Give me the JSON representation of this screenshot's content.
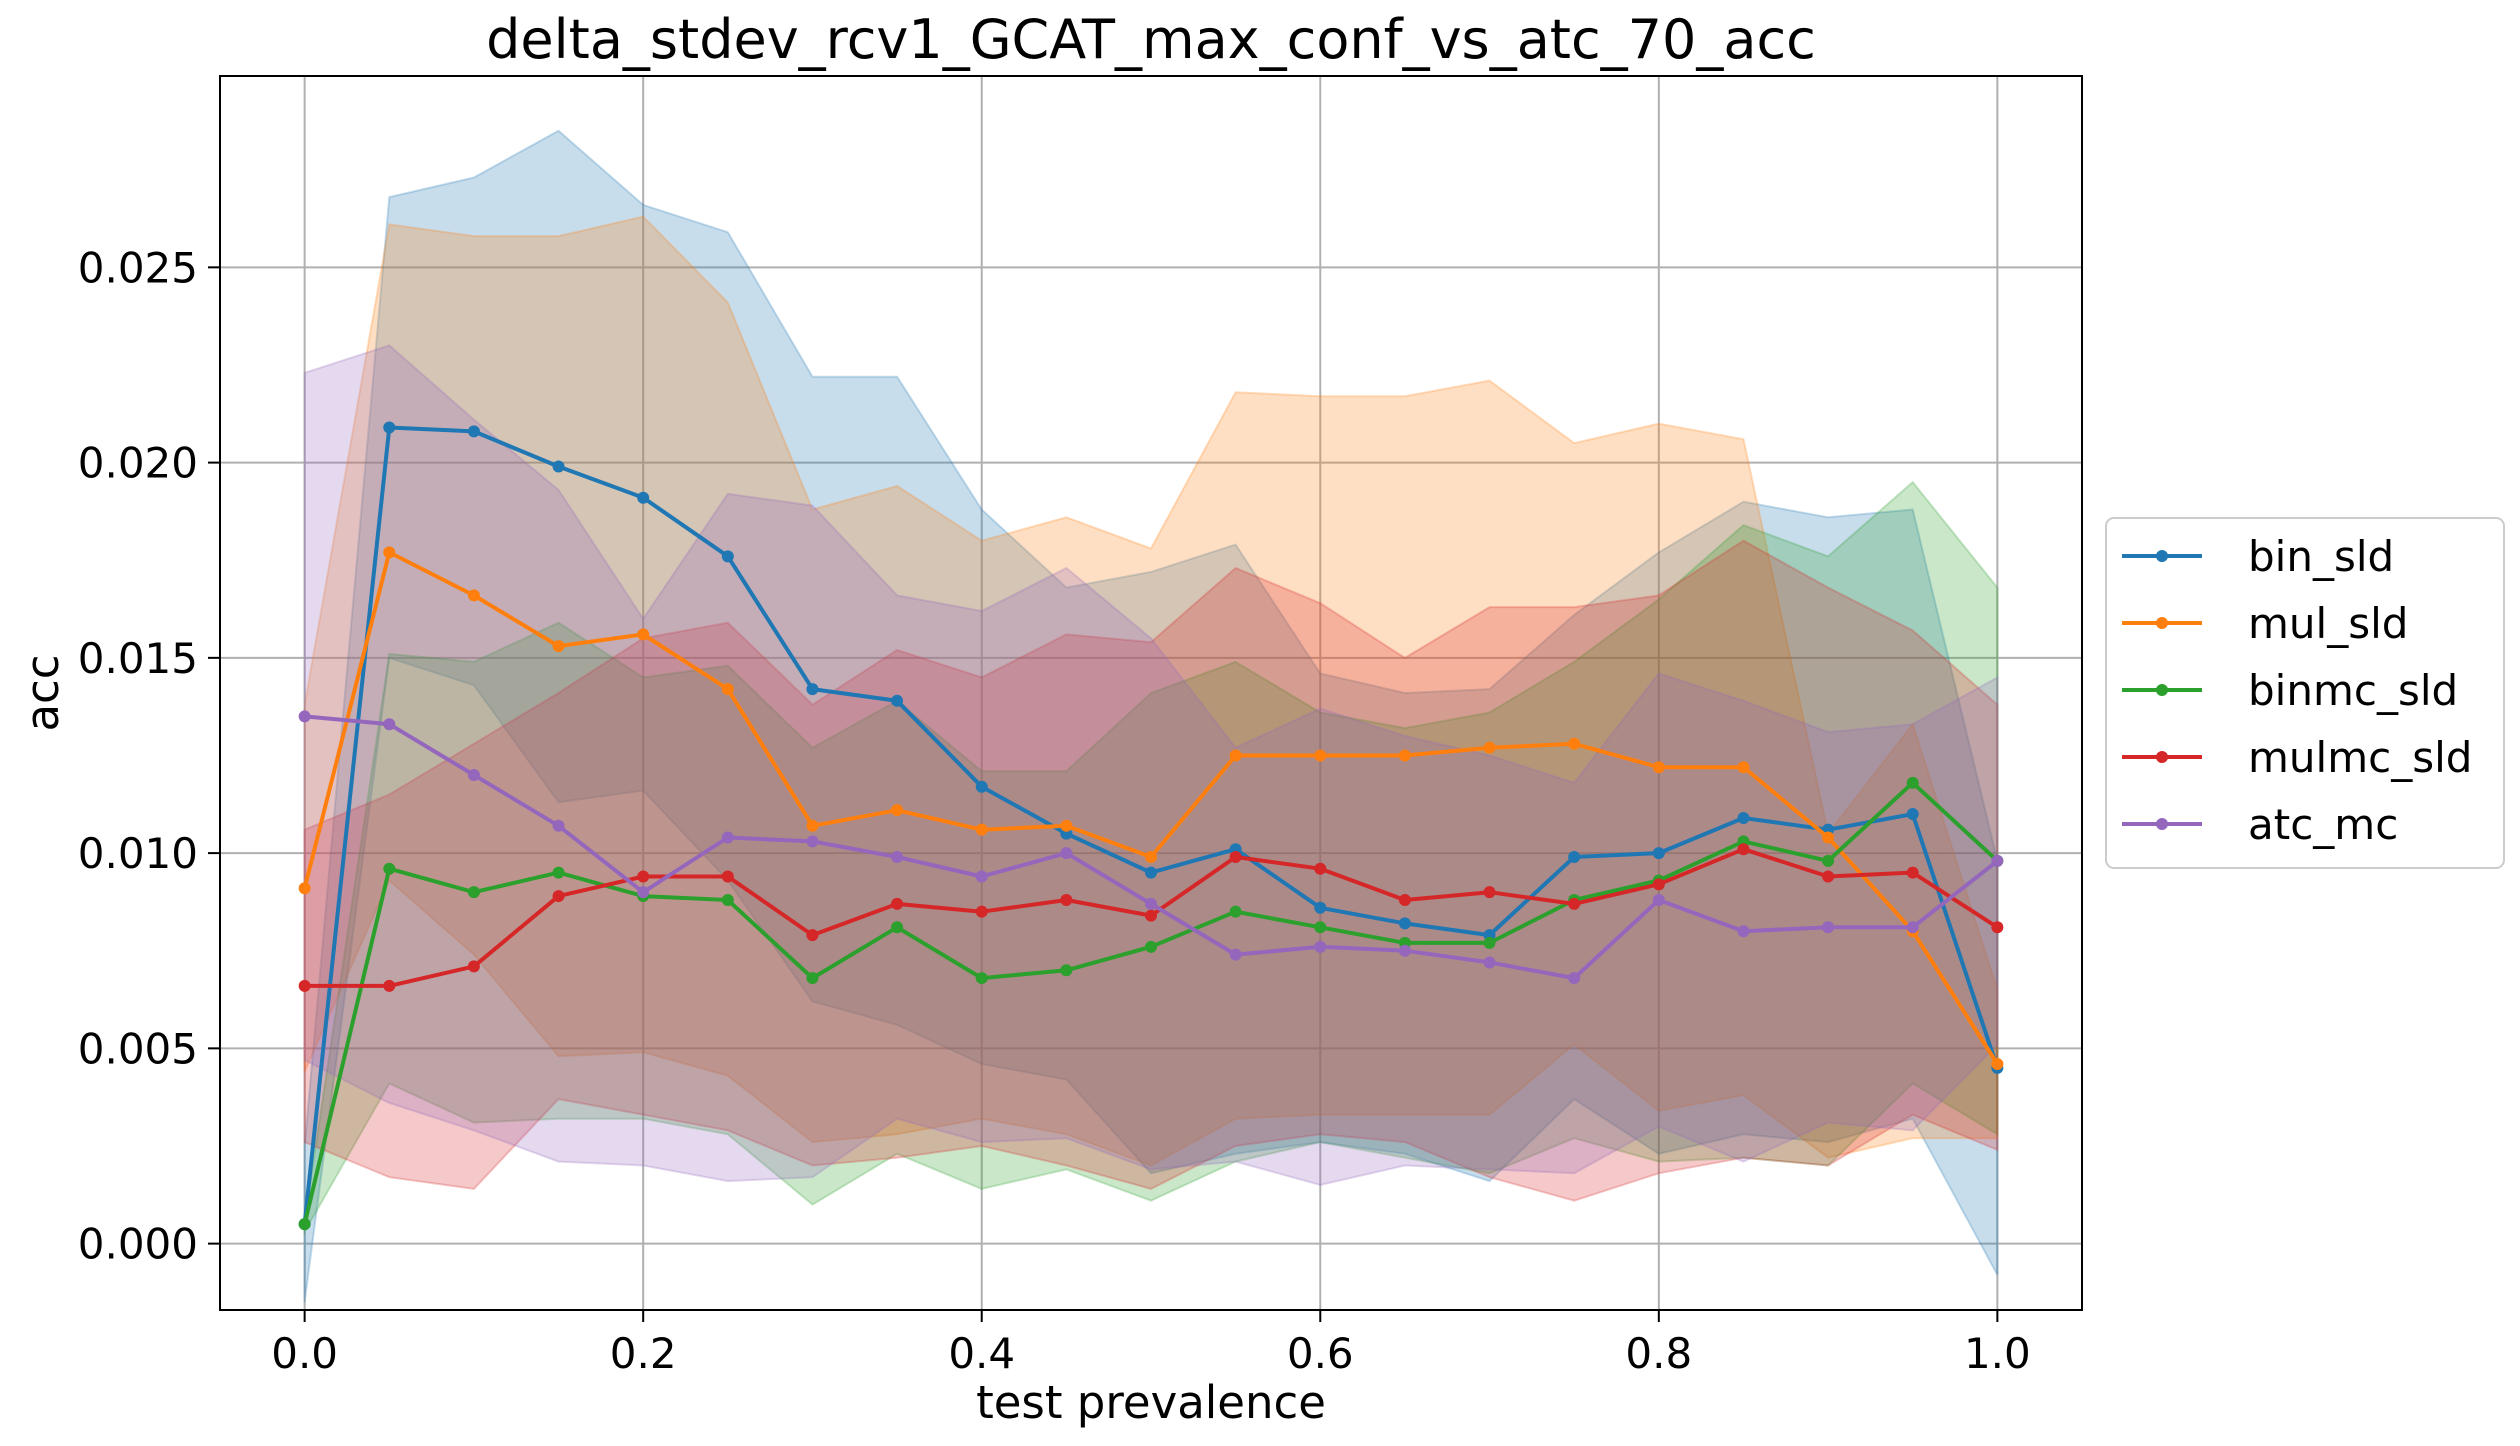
{
  "chart_data": {
    "type": "line",
    "title": "delta_stdev_rcv1_GCAT_max_conf_vs_atc_70_acc",
    "xlabel": "test prevalence",
    "ylabel": "acc",
    "xlim": [
      -0.05,
      1.05
    ],
    "ylim": [
      -0.0017,
      0.0299
    ],
    "xticks": [
      0.0,
      0.2,
      0.4,
      0.6,
      0.8,
      1.0
    ],
    "xtick_labels": [
      "0.0",
      "0.2",
      "0.4",
      "0.6",
      "0.8",
      "1.0"
    ],
    "yticks": [
      0.0,
      0.005,
      0.01,
      0.015,
      0.02,
      0.025
    ],
    "ytick_labels": [
      "0.000",
      "0.005",
      "0.010",
      "0.015",
      "0.020",
      "0.025"
    ],
    "grid": true,
    "legend_position": "center-right-outside",
    "x": [
      0.0,
      0.05,
      0.1,
      0.15,
      0.2,
      0.25,
      0.3,
      0.35,
      0.4,
      0.45,
      0.5,
      0.55,
      0.6,
      0.65,
      0.7,
      0.75,
      0.8,
      0.85,
      0.9,
      0.95,
      1.0
    ],
    "series": [
      {
        "name": "bin_sld",
        "color": "#1f77b4",
        "values": [
          0.0005,
          0.0209,
          0.0208,
          0.0199,
          0.0191,
          0.0176,
          0.0142,
          0.0139,
          0.0117,
          0.0105,
          0.0095,
          0.0101,
          0.0086,
          0.0082,
          0.0079,
          0.0099,
          0.01,
          0.0109,
          0.0106,
          0.011,
          0.0045
        ],
        "upper": [
          0.0025,
          0.0268,
          0.0273,
          0.0285,
          0.0266,
          0.0259,
          0.0222,
          0.0222,
          0.0188,
          0.0168,
          0.0172,
          0.0179,
          0.0146,
          0.0141,
          0.0142,
          0.0161,
          0.0177,
          0.019,
          0.0186,
          0.0188,
          0.0098
        ],
        "lower": [
          -0.0015,
          0.015,
          0.0143,
          0.0113,
          0.0116,
          0.0093,
          0.0062,
          0.0056,
          0.0046,
          0.0042,
          0.0018,
          0.0023,
          0.0026,
          0.0023,
          0.0016,
          0.0037,
          0.0023,
          0.0028,
          0.0026,
          0.0032,
          -0.0008
        ]
      },
      {
        "name": "mul_sld",
        "color": "#ff7f0e",
        "values": [
          0.0091,
          0.0177,
          0.0166,
          0.0153,
          0.0156,
          0.0142,
          0.0107,
          0.0111,
          0.0106,
          0.0107,
          0.0099,
          0.0125,
          0.0125,
          0.0125,
          0.0127,
          0.0128,
          0.0122,
          0.0122,
          0.0104,
          0.008,
          0.0046
        ],
        "upper": [
          0.0138,
          0.0261,
          0.0258,
          0.0258,
          0.0263,
          0.0241,
          0.0188,
          0.0194,
          0.018,
          0.0186,
          0.0178,
          0.0218,
          0.0217,
          0.0217,
          0.0221,
          0.0205,
          0.021,
          0.0206,
          0.0105,
          0.0133,
          0.0065
        ],
        "lower": [
          0.0044,
          0.0093,
          0.0074,
          0.0048,
          0.0049,
          0.0043,
          0.0026,
          0.0028,
          0.0032,
          0.0028,
          0.002,
          0.0032,
          0.0033,
          0.0033,
          0.0033,
          0.0051,
          0.0034,
          0.0038,
          0.0022,
          0.0027,
          0.0027
        ]
      },
      {
        "name": "binmc_sld",
        "color": "#2ca02c",
        "values": [
          0.0005,
          0.0096,
          0.009,
          0.0095,
          0.0089,
          0.0088,
          0.0068,
          0.0081,
          0.0068,
          0.007,
          0.0076,
          0.0085,
          0.0081,
          0.0077,
          0.0077,
          0.0088,
          0.0093,
          0.0103,
          0.0098,
          0.0118,
          0.0098
        ],
        "upper": [
          0.0006,
          0.0151,
          0.0149,
          0.0159,
          0.0145,
          0.0148,
          0.0127,
          0.0139,
          0.0121,
          0.0121,
          0.0141,
          0.0149,
          0.0136,
          0.0132,
          0.0136,
          0.0149,
          0.0165,
          0.0184,
          0.0176,
          0.0195,
          0.0168
        ],
        "lower": [
          0.0003,
          0.0041,
          0.0031,
          0.0032,
          0.0032,
          0.0028,
          0.001,
          0.0023,
          0.0014,
          0.0019,
          0.0011,
          0.0021,
          0.0026,
          0.0022,
          0.0018,
          0.0027,
          0.0021,
          0.0022,
          0.002,
          0.0041,
          0.0028
        ]
      },
      {
        "name": "mulmc_sld",
        "color": "#d62728",
        "values": [
          0.0066,
          0.0066,
          0.0071,
          0.0089,
          0.0094,
          0.0094,
          0.0079,
          0.0087,
          0.0085,
          0.0088,
          0.0084,
          0.0099,
          0.0096,
          0.0088,
          0.009,
          0.0087,
          0.0092,
          0.0101,
          0.0094,
          0.0095,
          0.0081
        ],
        "upper": [
          0.0106,
          0.0115,
          0.0128,
          0.0141,
          0.0155,
          0.0159,
          0.0138,
          0.0152,
          0.0145,
          0.0156,
          0.0154,
          0.0173,
          0.0164,
          0.015,
          0.0163,
          0.0163,
          0.0166,
          0.018,
          0.0168,
          0.0157,
          0.0138
        ],
        "lower": [
          0.0026,
          0.0017,
          0.0014,
          0.0037,
          0.0033,
          0.0029,
          0.002,
          0.0022,
          0.0025,
          0.002,
          0.0014,
          0.0025,
          0.0028,
          0.0026,
          0.0017,
          0.0011,
          0.0018,
          0.0022,
          0.002,
          0.0033,
          0.0024
        ]
      },
      {
        "name": "atc_mc",
        "color": "#9467bd",
        "values": [
          0.0135,
          0.0133,
          0.012,
          0.0107,
          0.009,
          0.0104,
          0.0103,
          0.0099,
          0.0094,
          0.01,
          0.0087,
          0.0074,
          0.0076,
          0.0075,
          0.0072,
          0.0068,
          0.0088,
          0.008,
          0.0081,
          0.0081,
          0.0098
        ],
        "upper": [
          0.0223,
          0.023,
          0.0211,
          0.0193,
          0.016,
          0.0192,
          0.0189,
          0.0166,
          0.0162,
          0.0173,
          0.0155,
          0.0127,
          0.0137,
          0.013,
          0.0125,
          0.0118,
          0.0146,
          0.0139,
          0.0131,
          0.0133,
          0.0145
        ],
        "lower": [
          0.0047,
          0.0036,
          0.0029,
          0.0021,
          0.002,
          0.0016,
          0.0017,
          0.0032,
          0.0026,
          0.0027,
          0.0019,
          0.0021,
          0.0015,
          0.002,
          0.0019,
          0.0018,
          0.003,
          0.0021,
          0.0031,
          0.0029,
          0.0051
        ]
      }
    ]
  }
}
